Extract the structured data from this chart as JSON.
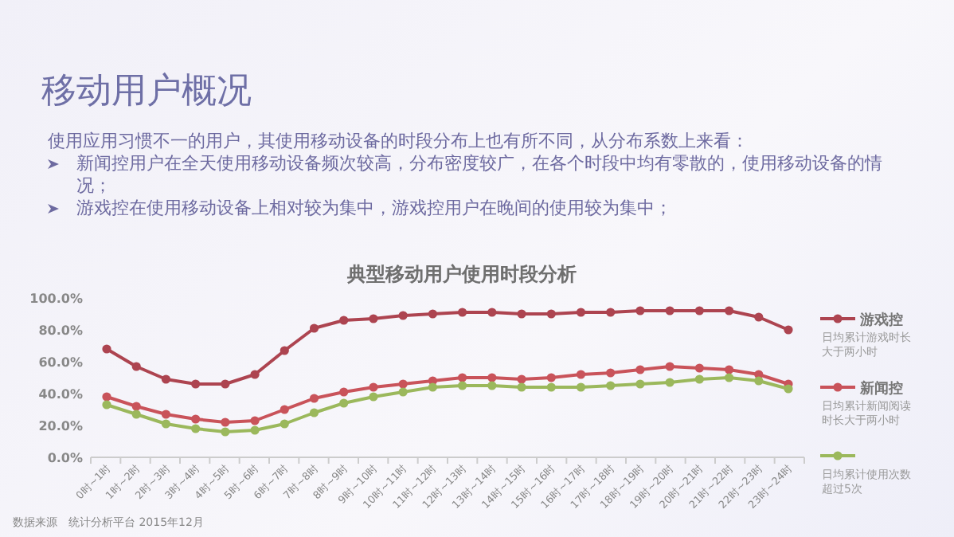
{
  "chart_data": {
    "type": "line",
    "title": "典型移动用户使用时段分析",
    "categories": [
      "0时~1时",
      "1时~2时",
      "2时~3时",
      "3时~4时",
      "4时~5时",
      "5时~6时",
      "6时~7时",
      "7时~8时",
      "8时~9时",
      "9时~10时",
      "10时~11时",
      "11时~12时",
      "12时~13时",
      "13时~14时",
      "14时~15时",
      "15时~16时",
      "16时~17时",
      "17时~18时",
      "18时~19时",
      "19时~20时",
      "20时~21时",
      "21时~22时",
      "22时~23时",
      "23时~24时"
    ],
    "series": [
      {
        "name": "游戏控",
        "color": "#ad4450",
        "values": [
          68,
          57,
          49,
          46,
          46,
          52,
          67,
          81,
          86,
          87,
          89,
          90,
          91,
          91,
          90,
          90,
          91,
          91,
          92,
          92,
          92,
          92,
          88,
          80
        ]
      },
      {
        "name": "新闻控",
        "color": "#c9535a",
        "values": [
          38,
          32,
          27,
          24,
          22,
          23,
          30,
          37,
          41,
          44,
          46,
          48,
          50,
          50,
          49,
          50,
          52,
          53,
          55,
          57,
          56,
          55,
          52,
          46
        ]
      },
      {
        "color": "#9bb85c",
        "values": [
          33,
          27,
          21,
          18,
          16,
          17,
          21,
          28,
          34,
          38,
          41,
          44,
          45,
          45,
          44,
          44,
          44,
          45,
          46,
          47,
          49,
          50,
          48,
          43
        ]
      }
    ],
    "ylim": [
      0,
      100
    ],
    "yticks": [
      {
        "value": 0,
        "label": "0.0%"
      },
      {
        "value": 20,
        "label": "20.0%"
      },
      {
        "value": 40,
        "label": "40.0%"
      },
      {
        "value": 60,
        "label": "60.0%"
      },
      {
        "value": 80,
        "label": "80.0%"
      },
      {
        "value": 100,
        "label": "100.0%"
      }
    ],
    "grid": false,
    "legend": "right",
    "marker": "circle",
    "line_style": "solid",
    "annotations": [
      "移动用户概况",
      "使用应用习惯不一的用户，其使用移动设备的时段分布上也有所不同，从分布系数上来看：",
      "新闻控用户在全天使用移动设备频次较高，分布密度较广，在各个时段中均有零散的，使用移动设备的情况；",
      "游戏控在使用移动设备上相对较为集中，游戏控用户在晚间的使用较为集中；",
      "日均累计游戏时长大于两小时",
      "日均累计新闻阅读时长大于两小时",
      "日均累计使用次数超过5次",
      "数据来源　统计分析平台 2015年12月"
    ]
  }
}
